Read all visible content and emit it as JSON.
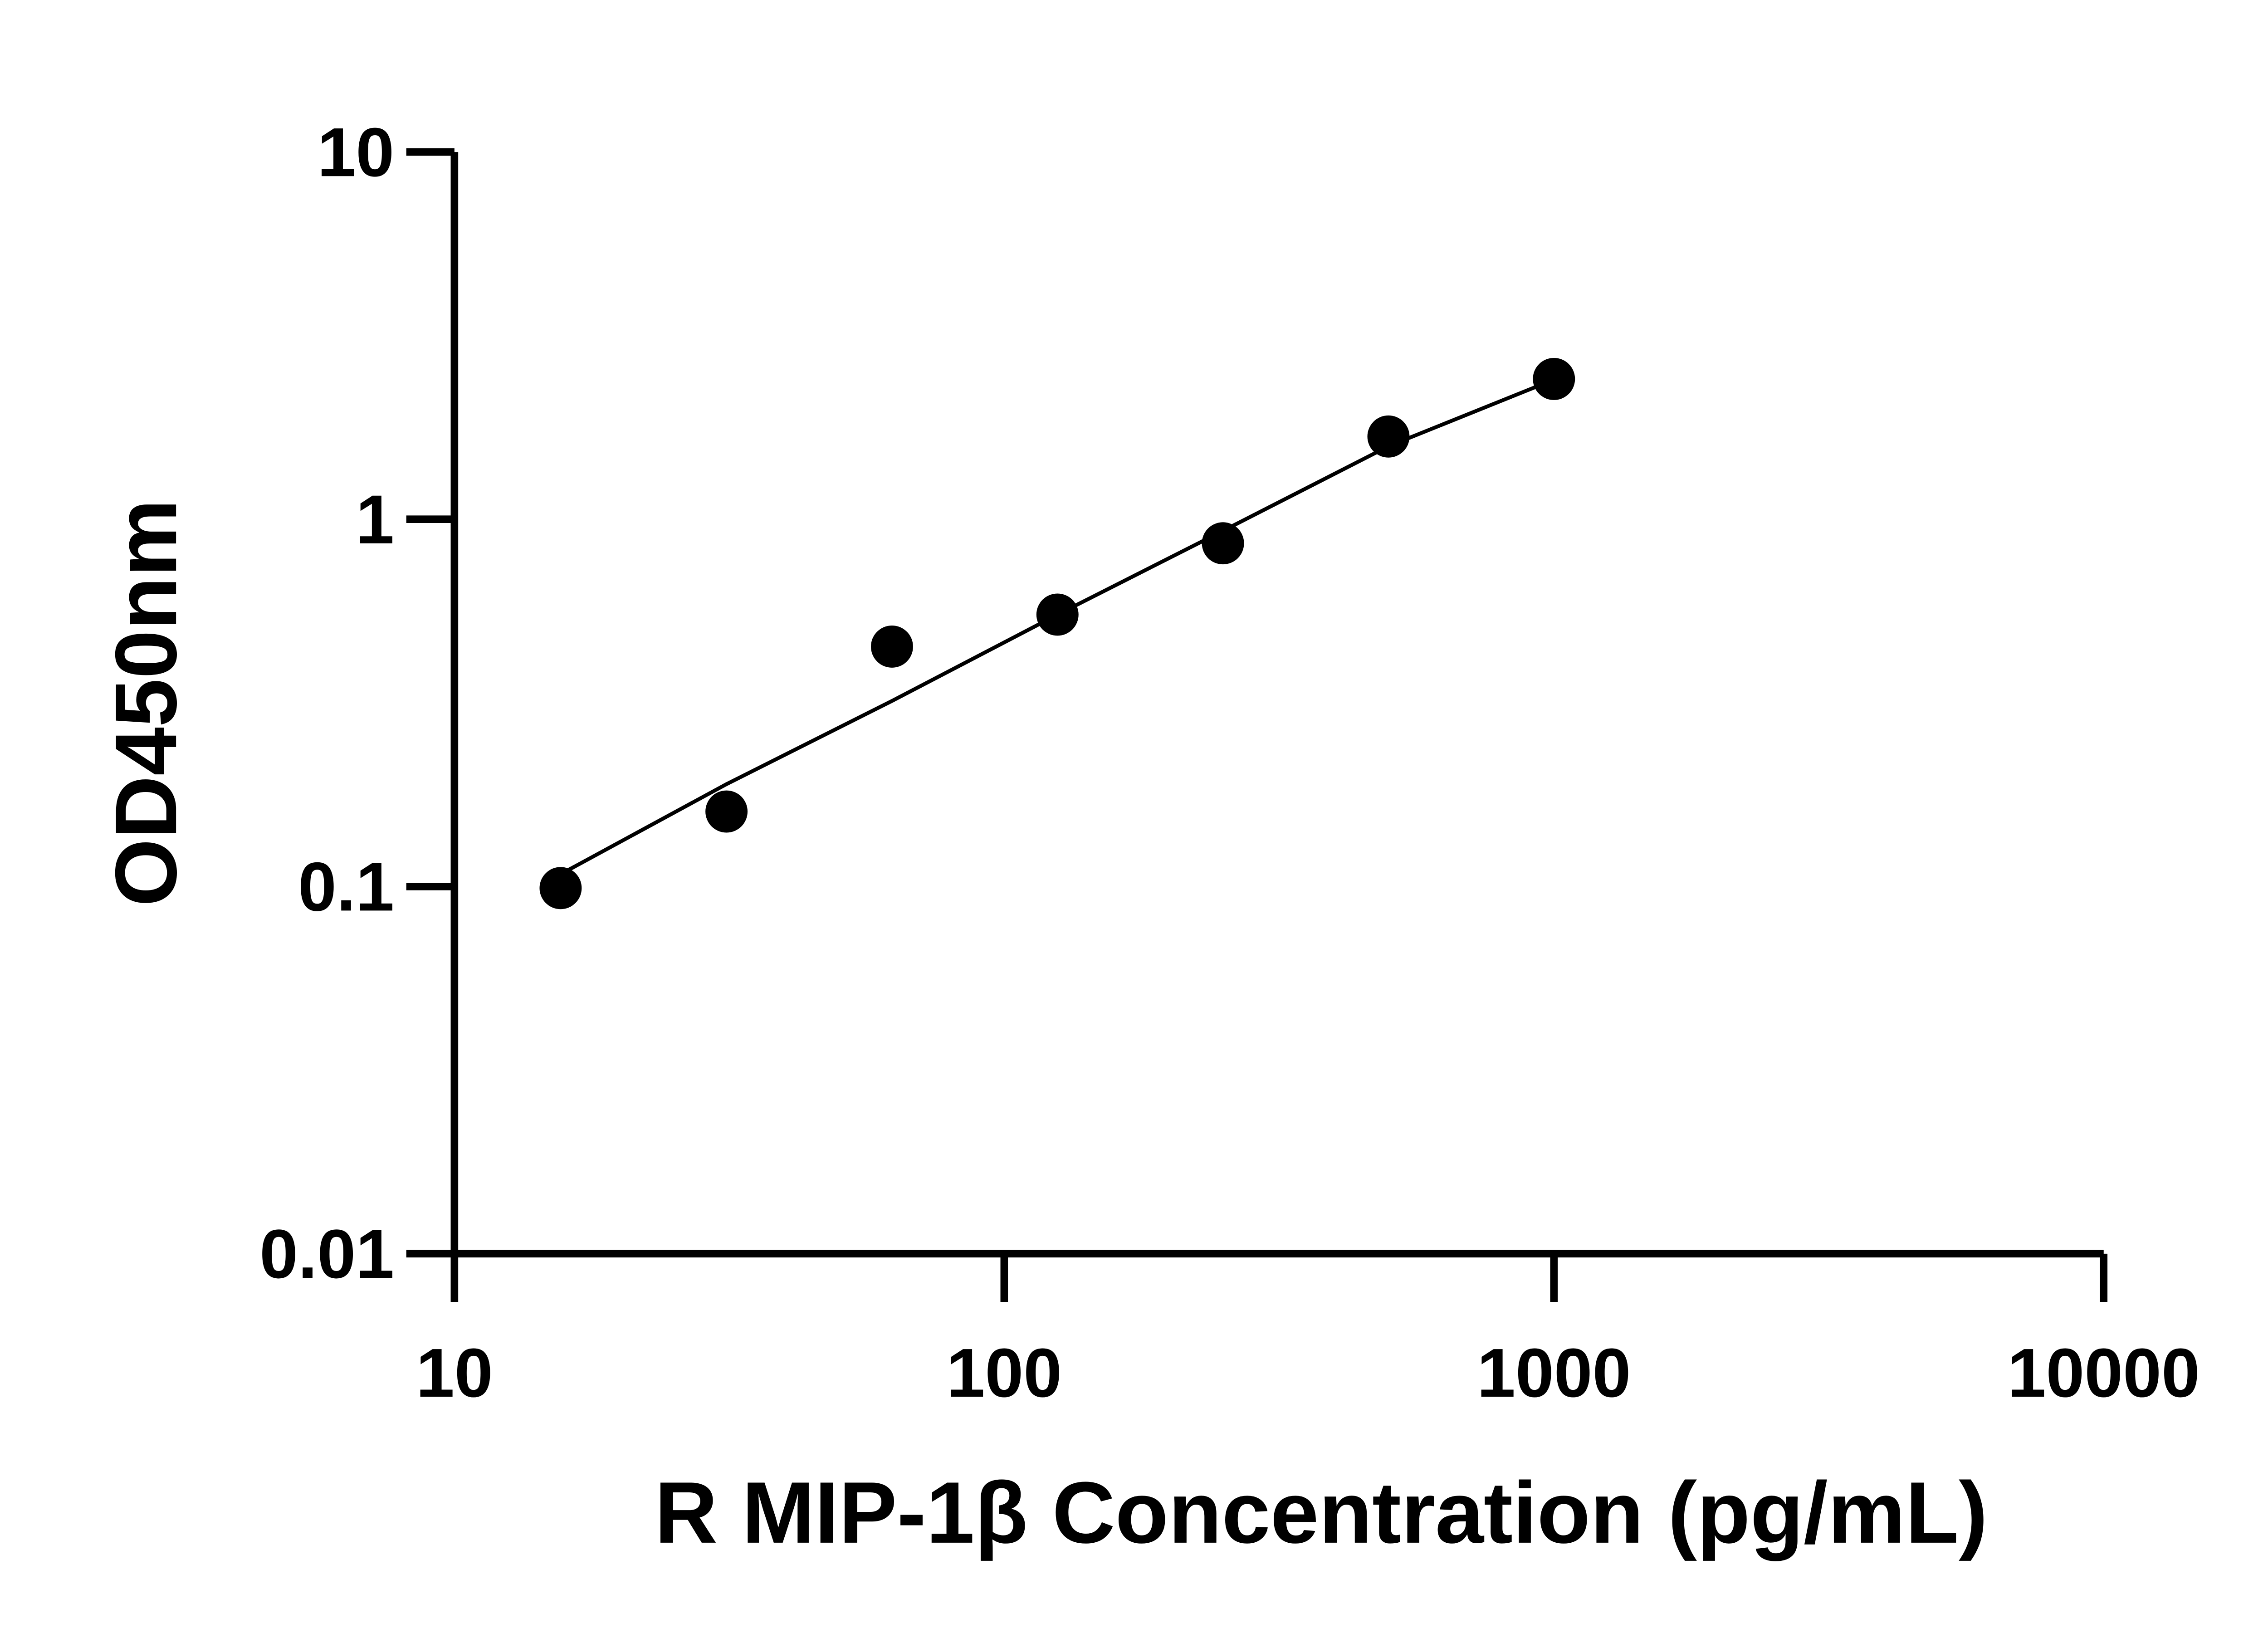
{
  "chart_data": {
    "type": "scatter",
    "title": "",
    "xlabel": "R MIP-1β Concentration (pg/mL)",
    "ylabel": "OD450nm",
    "x_scale": "log",
    "y_scale": "log",
    "xlim": [
      10,
      10000
    ],
    "ylim": [
      0.01,
      10
    ],
    "x_ticks": [
      10,
      100,
      1000,
      10000
    ],
    "x_tick_labels": [
      "10",
      "100",
      "1000",
      "10000"
    ],
    "y_ticks": [
      0.01,
      0.1,
      1,
      10
    ],
    "y_tick_labels": [
      "0.01",
      "0.1",
      "1",
      "10"
    ],
    "grid": false,
    "legend": "none",
    "points": [
      {
        "x": 15.6,
        "y": 0.099
      },
      {
        "x": 31.25,
        "y": 0.16
      },
      {
        "x": 62.5,
        "y": 0.45
      },
      {
        "x": 125,
        "y": 0.55
      },
      {
        "x": 250,
        "y": 0.86
      },
      {
        "x": 500,
        "y": 1.68
      },
      {
        "x": 1000,
        "y": 2.41
      }
    ],
    "fit_curve": [
      [
        15.6,
        0.108
      ],
      [
        31.25,
        0.19
      ],
      [
        62.5,
        0.32
      ],
      [
        125,
        0.55
      ],
      [
        250,
        0.93
      ],
      [
        500,
        1.58
      ],
      [
        1000,
        2.4
      ]
    ],
    "colors": {
      "points": "#000000",
      "line": "#000000",
      "axes": "#000000"
    }
  }
}
